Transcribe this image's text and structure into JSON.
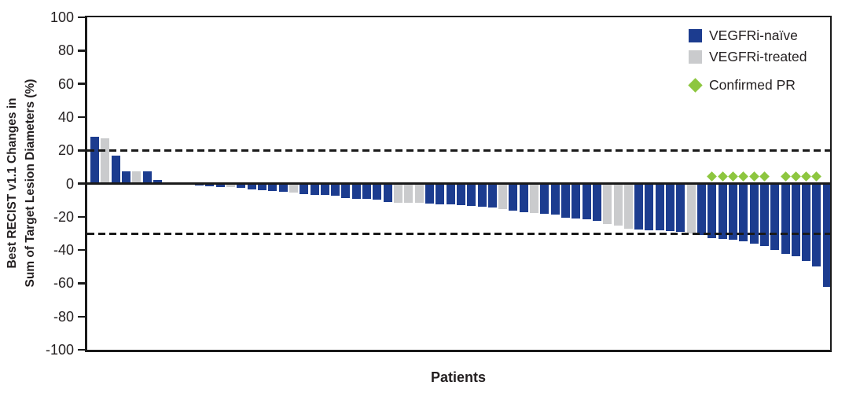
{
  "colors": {
    "naive": "#1c3c8f",
    "treated": "#cacbcd",
    "pr": "#8dc63f",
    "axis": "#1a1a1a",
    "text": "#231f20"
  },
  "chart_data": {
    "type": "bar",
    "subtype": "waterfall",
    "title": "",
    "xlabel": "Patients",
    "ylabel_line1": "Best RECIST v1.1 Changes in",
    "ylabel_line2": "Sum of Target Lesion Diameters (%)",
    "ylim": [
      -100,
      100
    ],
    "yticks": [
      100,
      80,
      60,
      40,
      20,
      0,
      -20,
      -40,
      -60,
      -80,
      -100
    ],
    "reference_lines_pct": [
      20,
      -30
    ],
    "grid": false,
    "legend_position": "top-right-inside",
    "legend": [
      {
        "label": "VEGFRi-naïve",
        "marker": "square",
        "color": "#1c3c8f"
      },
      {
        "label": "VEGFRi-treated",
        "marker": "square",
        "color": "#cacbcd"
      },
      {
        "label": "Confirmed PR",
        "marker": "diamond",
        "color": "#8dc63f"
      }
    ],
    "patients": [
      {
        "value": 28,
        "group": "naive",
        "confirmed_pr": false
      },
      {
        "value": 27,
        "group": "treated",
        "confirmed_pr": false
      },
      {
        "value": 17,
        "group": "naive",
        "confirmed_pr": false
      },
      {
        "value": 7.5,
        "group": "naive",
        "confirmed_pr": false
      },
      {
        "value": 7.5,
        "group": "treated",
        "confirmed_pr": false
      },
      {
        "value": 7.5,
        "group": "naive",
        "confirmed_pr": false
      },
      {
        "value": 2,
        "group": "naive",
        "confirmed_pr": false
      },
      {
        "value": 0,
        "group": "naive",
        "confirmed_pr": false
      },
      {
        "value": 0,
        "group": "naive",
        "confirmed_pr": false
      },
      {
        "value": 0,
        "group": "naive",
        "confirmed_pr": false
      },
      {
        "value": -1,
        "group": "naive",
        "confirmed_pr": false
      },
      {
        "value": -1.5,
        "group": "naive",
        "confirmed_pr": false
      },
      {
        "value": -2,
        "group": "naive",
        "confirmed_pr": false
      },
      {
        "value": -2,
        "group": "treated",
        "confirmed_pr": false
      },
      {
        "value": -2.5,
        "group": "naive",
        "confirmed_pr": false
      },
      {
        "value": -3.5,
        "group": "naive",
        "confirmed_pr": false
      },
      {
        "value": -4,
        "group": "naive",
        "confirmed_pr": false
      },
      {
        "value": -4.5,
        "group": "naive",
        "confirmed_pr": false
      },
      {
        "value": -5,
        "group": "naive",
        "confirmed_pr": false
      },
      {
        "value": -5.5,
        "group": "treated",
        "confirmed_pr": false
      },
      {
        "value": -6.5,
        "group": "naive",
        "confirmed_pr": false
      },
      {
        "value": -7,
        "group": "naive",
        "confirmed_pr": false
      },
      {
        "value": -7,
        "group": "naive",
        "confirmed_pr": false
      },
      {
        "value": -7.5,
        "group": "naive",
        "confirmed_pr": false
      },
      {
        "value": -8.5,
        "group": "naive",
        "confirmed_pr": false
      },
      {
        "value": -9,
        "group": "naive",
        "confirmed_pr": false
      },
      {
        "value": -9,
        "group": "naive",
        "confirmed_pr": false
      },
      {
        "value": -9.5,
        "group": "naive",
        "confirmed_pr": false
      },
      {
        "value": -11,
        "group": "naive",
        "confirmed_pr": false
      },
      {
        "value": -11.5,
        "group": "treated",
        "confirmed_pr": false
      },
      {
        "value": -11.5,
        "group": "treated",
        "confirmed_pr": false
      },
      {
        "value": -11.5,
        "group": "treated",
        "confirmed_pr": false
      },
      {
        "value": -12,
        "group": "naive",
        "confirmed_pr": false
      },
      {
        "value": -12.5,
        "group": "naive",
        "confirmed_pr": false
      },
      {
        "value": -12.5,
        "group": "naive",
        "confirmed_pr": false
      },
      {
        "value": -13,
        "group": "naive",
        "confirmed_pr": false
      },
      {
        "value": -13.5,
        "group": "naive",
        "confirmed_pr": false
      },
      {
        "value": -14,
        "group": "naive",
        "confirmed_pr": false
      },
      {
        "value": -14.5,
        "group": "naive",
        "confirmed_pr": false
      },
      {
        "value": -15.5,
        "group": "treated",
        "confirmed_pr": false
      },
      {
        "value": -16.5,
        "group": "naive",
        "confirmed_pr": false
      },
      {
        "value": -17,
        "group": "naive",
        "confirmed_pr": false
      },
      {
        "value": -17.5,
        "group": "treated",
        "confirmed_pr": false
      },
      {
        "value": -18,
        "group": "naive",
        "confirmed_pr": false
      },
      {
        "value": -18.5,
        "group": "naive",
        "confirmed_pr": false
      },
      {
        "value": -20.5,
        "group": "naive",
        "confirmed_pr": false
      },
      {
        "value": -21,
        "group": "naive",
        "confirmed_pr": false
      },
      {
        "value": -21.5,
        "group": "naive",
        "confirmed_pr": false
      },
      {
        "value": -22.5,
        "group": "naive",
        "confirmed_pr": false
      },
      {
        "value": -24.5,
        "group": "treated",
        "confirmed_pr": false
      },
      {
        "value": -25.5,
        "group": "treated",
        "confirmed_pr": false
      },
      {
        "value": -27,
        "group": "treated",
        "confirmed_pr": false
      },
      {
        "value": -27.5,
        "group": "naive",
        "confirmed_pr": false
      },
      {
        "value": -28,
        "group": "naive",
        "confirmed_pr": false
      },
      {
        "value": -28,
        "group": "naive",
        "confirmed_pr": false
      },
      {
        "value": -28.5,
        "group": "naive",
        "confirmed_pr": false
      },
      {
        "value": -29,
        "group": "naive",
        "confirmed_pr": false
      },
      {
        "value": -30,
        "group": "treated",
        "confirmed_pr": false
      },
      {
        "value": -31,
        "group": "naive",
        "confirmed_pr": false
      },
      {
        "value": -33,
        "group": "naive",
        "confirmed_pr": true
      },
      {
        "value": -33.5,
        "group": "naive",
        "confirmed_pr": true
      },
      {
        "value": -34,
        "group": "naive",
        "confirmed_pr": true
      },
      {
        "value": -34.5,
        "group": "naive",
        "confirmed_pr": true
      },
      {
        "value": -36,
        "group": "naive",
        "confirmed_pr": true
      },
      {
        "value": -37.5,
        "group": "naive",
        "confirmed_pr": true
      },
      {
        "value": -40,
        "group": "naive",
        "confirmed_pr": false
      },
      {
        "value": -42.5,
        "group": "naive",
        "confirmed_pr": true
      },
      {
        "value": -43.5,
        "group": "naive",
        "confirmed_pr": true
      },
      {
        "value": -46.5,
        "group": "naive",
        "confirmed_pr": true
      },
      {
        "value": -50,
        "group": "naive",
        "confirmed_pr": true
      },
      {
        "value": -62,
        "group": "naive",
        "confirmed_pr": false
      }
    ]
  }
}
